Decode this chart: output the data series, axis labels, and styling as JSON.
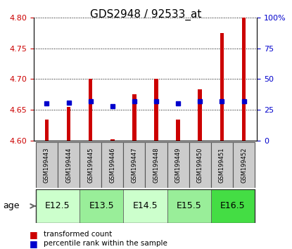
{
  "title": "GDS2948 / 92533_at",
  "samples": [
    "GSM199443",
    "GSM199444",
    "GSM199445",
    "GSM199446",
    "GSM199447",
    "GSM199448",
    "GSM199449",
    "GSM199450",
    "GSM199451",
    "GSM199452"
  ],
  "red_values": [
    4.634,
    4.655,
    4.7,
    4.602,
    4.675,
    4.7,
    4.634,
    4.683,
    4.775,
    4.8
  ],
  "blue_pct": [
    30,
    31,
    32,
    28,
    32,
    32,
    30,
    32,
    32,
    32
  ],
  "ylim": [
    4.6,
    4.8
  ],
  "yticks_left": [
    4.6,
    4.65,
    4.7,
    4.75,
    4.8
  ],
  "yticks_right": [
    0,
    25,
    50,
    75,
    100
  ],
  "age_groups": [
    {
      "label": "E12.5",
      "start": 0,
      "end": 2,
      "color": "#ccffcc"
    },
    {
      "label": "E13.5",
      "start": 2,
      "end": 4,
      "color": "#99ee99"
    },
    {
      "label": "E14.5",
      "start": 4,
      "end": 6,
      "color": "#ccffcc"
    },
    {
      "label": "E15.5",
      "start": 6,
      "end": 8,
      "color": "#99ee99"
    },
    {
      "label": "E16.5",
      "start": 8,
      "end": 10,
      "color": "#44dd44"
    }
  ],
  "bar_color": "#cc0000",
  "blue_color": "#0000cc",
  "bar_width": 0.18,
  "baseline": 4.6,
  "ylabel_left_color": "#cc0000",
  "ylabel_right_color": "#0000cc",
  "legend_items": [
    "transformed count",
    "percentile rank within the sample"
  ],
  "sample_box_color": "#cccccc",
  "age_label": "age",
  "title_fontsize": 11,
  "tick_fontsize": 8,
  "sample_fontsize": 6,
  "age_fontsize": 9
}
